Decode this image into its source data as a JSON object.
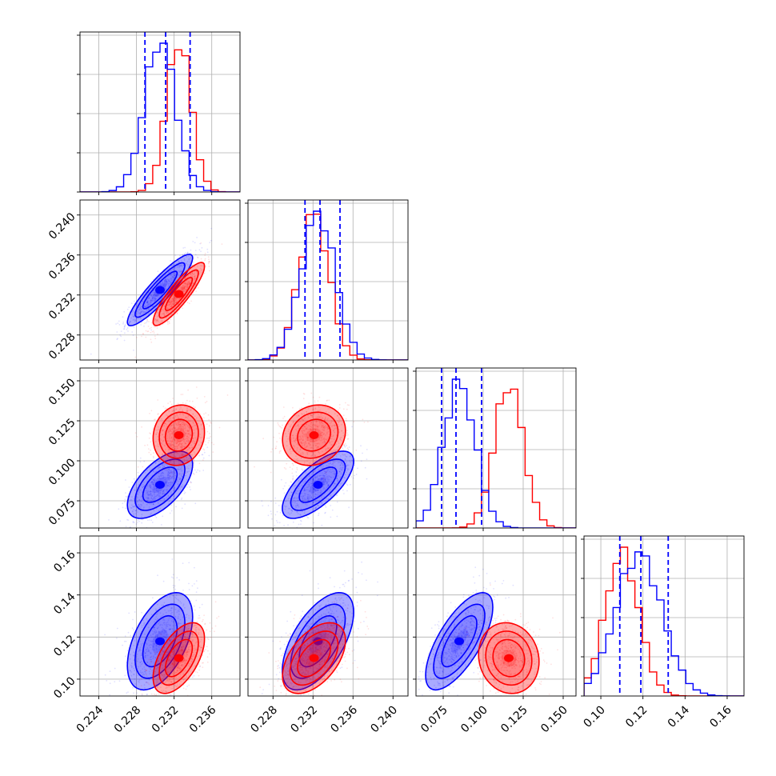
{
  "chart_data": {
    "type": "corner",
    "title": "",
    "colors": {
      "series_a": "#0000ff",
      "series_b": "#ff0000"
    },
    "series": [
      {
        "color": "#0000ff"
      },
      {
        "color": "#ff0000"
      }
    ],
    "parameters": [
      {
        "range": [
          0.222,
          0.239
        ],
        "ticks": [
          0.224,
          0.228,
          0.232,
          0.236
        ],
        "tick_labels": [
          "0.224",
          "0.228",
          "0.232",
          "0.236"
        ]
      },
      {
        "range": [
          0.2255,
          0.2415
        ],
        "ticks": [
          0.228,
          0.232,
          0.236,
          0.24
        ],
        "tick_labels": [
          "0.228",
          "0.232",
          "0.236",
          "0.240"
        ]
      },
      {
        "range": [
          0.058,
          0.158
        ],
        "ticks": [
          0.075,
          0.1,
          0.125,
          0.15
        ],
        "tick_labels": [
          "0.075",
          "0.100",
          "0.125",
          "0.150"
        ]
      },
      {
        "range": [
          0.092,
          0.168
        ],
        "ticks": [
          0.1,
          0.12,
          0.14,
          0.16
        ],
        "tick_labels": [
          "0.10",
          "0.12",
          "0.14",
          "0.16"
        ]
      }
    ],
    "quantiles_series_a": [
      [
        0.2289,
        0.2311,
        0.2337
      ],
      [
        0.2312,
        0.2327,
        0.2347
      ],
      [
        0.074,
        0.083,
        0.099
      ],
      [
        0.109,
        0.119,
        0.132
      ]
    ],
    "means": {
      "series_a": [
        0.2305,
        0.2325,
        0.085,
        0.118
      ],
      "series_b": [
        0.2325,
        0.2321,
        0.116,
        0.11
      ]
    },
    "sigmas": {
      "series_a": [
        0.00165,
        0.0017,
        0.01,
        0.011
      ],
      "series_b": [
        0.0013,
        0.0015,
        0.009,
        0.008
      ]
    },
    "correlations": {
      "series_a": [
        [
          1,
          0.9,
          0.6,
          0.5
        ],
        [
          0.9,
          1,
          0.7,
          0.6
        ],
        [
          0.6,
          0.7,
          1,
          0.7
        ],
        [
          0.5,
          0.6,
          0.7,
          1
        ]
      ],
      "series_b": [
        [
          1,
          0.88,
          0.1,
          0.55
        ],
        [
          0.88,
          1,
          0.15,
          0.5
        ],
        [
          0.1,
          0.15,
          1,
          -0.1
        ],
        [
          0.55,
          0.5,
          -0.1,
          1
        ]
      ]
    },
    "grid": true,
    "x_tick_rotation_deg": 45,
    "y_tick_rotation_deg": 45
  }
}
